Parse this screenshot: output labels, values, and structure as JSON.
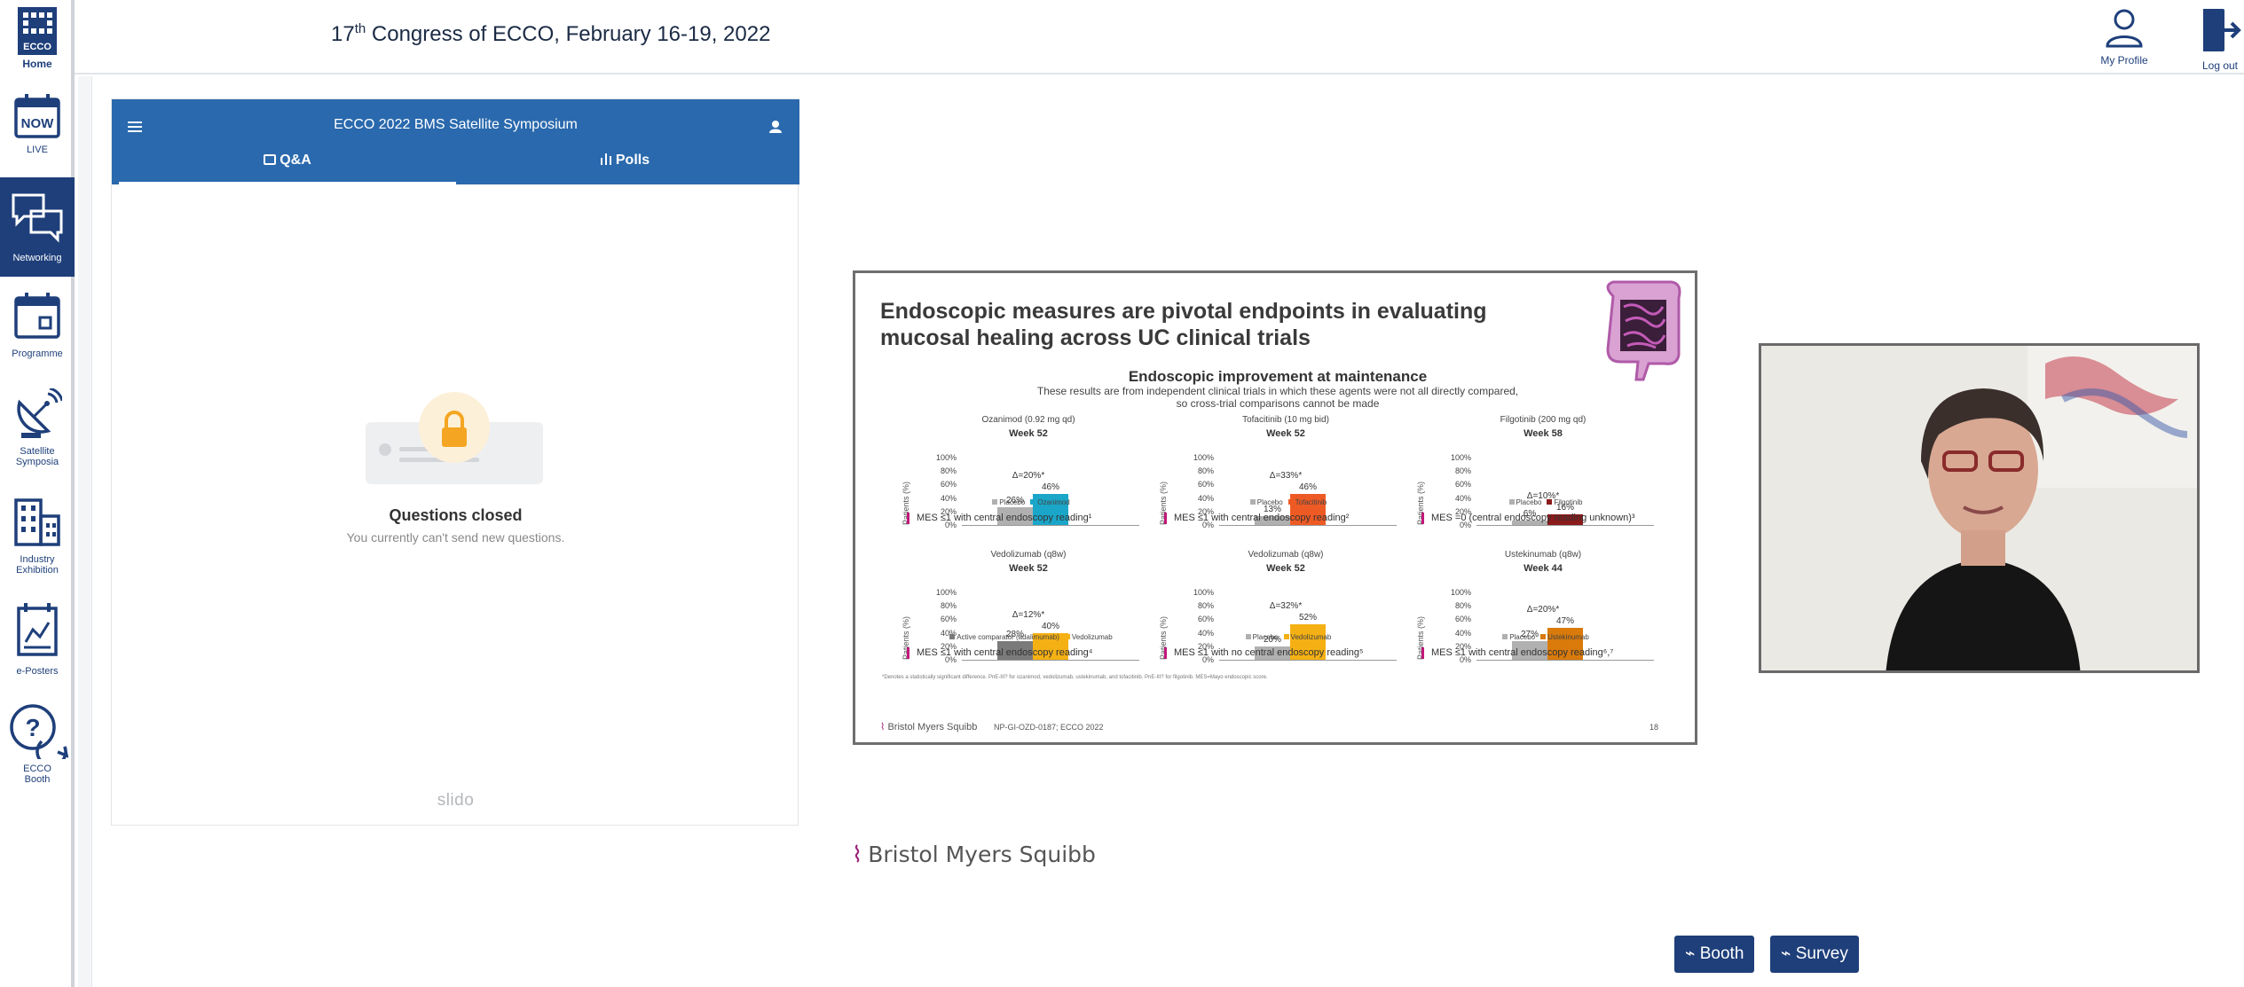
{
  "header": {
    "title_prefix": "17",
    "title_sup": "th",
    "title_rest": " Congress of ECCO, February 16-19, 2022",
    "my_profile": "My Profile",
    "log_out": "Log out"
  },
  "sidebar": {
    "logo_text": "ECCO",
    "home": "Home",
    "items": [
      {
        "label": "LIVE",
        "icon": "now-calendar-icon",
        "badge": "NOW"
      },
      {
        "label": "Networking",
        "icon": "chat-bubbles-icon"
      },
      {
        "label": "Programme",
        "icon": "calendar-icon"
      },
      {
        "label": "Satellite Symposia",
        "icon": "satellite-dish-icon"
      },
      {
        "label": "Industry Exhibition",
        "icon": "buildings-icon"
      },
      {
        "label": "e-Posters",
        "icon": "poster-icon"
      },
      {
        "label": "ECCO Booth",
        "icon": "help-bubble-icon"
      }
    ],
    "active_index": 1
  },
  "slido": {
    "event_title": "ECCO 2022 BMS Satellite Symposium",
    "tabs": [
      "Q&A",
      "Polls"
    ],
    "active_tab": 0,
    "closed_title": "Questions closed",
    "closed_sub": "You currently can't send new questions.",
    "brand": "slido"
  },
  "slide": {
    "title_line1": "Endoscopic measures are pivotal endpoints in evaluating",
    "title_line2": "mucosal healing across UC clinical trials",
    "subtitle": "Endoscopic improvement at maintenance",
    "note_line1": "These results are from independent clinical trials in which these agents were not all directly compared,",
    "note_line2": "so cross-trial comparisons cannot be made",
    "y_label": "Patients (%)",
    "y_ticks": [
      "100%",
      "80%",
      "60%",
      "40%",
      "20%",
      "0%"
    ],
    "refs": "*Denotes a statistically significant difference. PnE-III? for ozanimod, vedolizumab, ustekinumab, and tofacitinib. PnE-III? for filgotinib. MES=Mayo endoscopic score.",
    "foot_brand": "Bristol Myers Squibb",
    "foot_code": "NP-GI-OZD-0187; ECCO 2022",
    "page": "18"
  },
  "chart_data": [
    {
      "type": "bar",
      "drug": "Ozanimod (0.92 mg qd)",
      "week": "Week 52",
      "delta": "Δ=20%*",
      "categories": [
        "Placebo",
        "Ozanimod"
      ],
      "values": [
        26,
        46
      ],
      "colors": [
        "#b0b0b0",
        "#1aa6c8"
      ],
      "ylim": [
        0,
        100
      ],
      "mes": "MES ≤1 with central endoscopy reading¹"
    },
    {
      "type": "bar",
      "drug": "Tofacitinib (10 mg bid)",
      "week": "Week 52",
      "delta": "Δ=33%*",
      "categories": [
        "Placebo",
        "Tofacitinib"
      ],
      "values": [
        13,
        46
      ],
      "colors": [
        "#b0b0b0",
        "#ee5a24"
      ],
      "ylim": [
        0,
        100
      ],
      "mes": "MES ≤1 with central endoscopy reading²"
    },
    {
      "type": "bar",
      "drug": "Filgotinib (200 mg qd)",
      "week": "Week 58",
      "delta": "Δ=10%*",
      "categories": [
        "Placebo",
        "Filgotinib"
      ],
      "values": [
        6,
        16
      ],
      "colors": [
        "#b0b0b0",
        "#8b1a1a"
      ],
      "ylim": [
        0,
        100
      ],
      "mes": "MES =0 (central endoscopy reading unknown)³"
    },
    {
      "type": "bar",
      "drug": "Vedolizumab (q8w)",
      "week": "Week 52",
      "delta": "Δ=12%*",
      "categories": [
        "Active comparator (adalimumab)",
        "Vedolizumab"
      ],
      "values": [
        28,
        40
      ],
      "colors": [
        "#7a7a7a",
        "#f5b013"
      ],
      "ylim": [
        0,
        100
      ],
      "mes": "MES ≤1 with central endoscopy reading⁴"
    },
    {
      "type": "bar",
      "drug": "Vedolizumab (q8w)",
      "week": "Week 52",
      "delta": "Δ=32%*",
      "categories": [
        "Placebo",
        "Vedolizumab"
      ],
      "values": [
        20,
        52
      ],
      "colors": [
        "#b0b0b0",
        "#f5b013"
      ],
      "ylim": [
        0,
        100
      ],
      "mes": "MES ≤1 with no central endoscopy reading⁵"
    },
    {
      "type": "bar",
      "drug": "Ustekinumab (q8w)",
      "week": "Week 44",
      "delta": "Δ=20%*",
      "categories": [
        "Placebo",
        "Ustekinumab"
      ],
      "values": [
        27,
        47
      ],
      "colors": [
        "#b0b0b0",
        "#d97a0b"
      ],
      "ylim": [
        0,
        100
      ],
      "mes": "MES ≤1 with central endoscopy reading⁶,⁷"
    }
  ],
  "bms_logo": "Bristol Myers Squibb",
  "buttons": {
    "booth": "Booth",
    "survey": "Survey"
  }
}
